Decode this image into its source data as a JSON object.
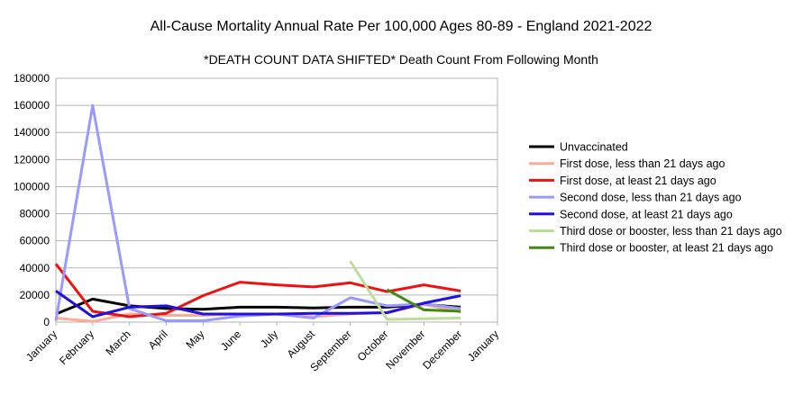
{
  "chart_data": {
    "type": "line",
    "title": "All-Cause Mortality Annual Rate Per 100,000 Ages 80-89 - England 2021-2022",
    "subtitle": "*DEATH COUNT DATA SHIFTED* Death Count From Following Month",
    "xlabel": "",
    "ylabel": "",
    "categories": [
      "January",
      "February",
      "March",
      "April",
      "May",
      "June",
      "July",
      "August",
      "September",
      "October",
      "November",
      "December",
      "January"
    ],
    "ylim": [
      0,
      180000
    ],
    "yticks": [
      "180000",
      "160000",
      "140000",
      "120000",
      "100000",
      "80000",
      "60000",
      "40000",
      "20000",
      "0"
    ],
    "grid": true,
    "legend_position": "right",
    "series": [
      {
        "name": "Unvaccinated",
        "color": "#000000",
        "values": [
          6000,
          17000,
          12000,
          10000,
          9500,
          11000,
          11000,
          10500,
          11000,
          11000,
          13000,
          11000,
          null
        ]
      },
      {
        "name": "First dose, less than 21 days ago",
        "color": "#ffaa95",
        "values": [
          3000,
          500,
          6000,
          5000,
          5000,
          6000,
          6000,
          4000,
          6000,
          7000,
          13000,
          7500,
          null
        ]
      },
      {
        "name": "First dose, at least 21 days ago",
        "color": "#ee1111",
        "values": [
          43000,
          8000,
          4000,
          6500,
          19500,
          29500,
          27500,
          26000,
          29000,
          22500,
          27500,
          23000,
          null
        ]
      },
      {
        "name": "Second dose, less than 21 days ago",
        "color": "#9999ff",
        "values": [
          1000,
          160000,
          10000,
          1000,
          1000,
          4500,
          6000,
          3000,
          18000,
          12000,
          13500,
          10000,
          null
        ]
      },
      {
        "name": "Second dose, at least 21 days ago",
        "color": "#2211dd",
        "values": [
          23000,
          4000,
          11000,
          12000,
          6000,
          6000,
          6000,
          6500,
          6500,
          7000,
          14000,
          19500,
          null
        ]
      },
      {
        "name": "Third dose or booster, less than 21 days ago",
        "color": "#bbdd99",
        "values": [
          null,
          null,
          null,
          null,
          null,
          null,
          null,
          null,
          45000,
          2000,
          2500,
          3000,
          null
        ]
      },
      {
        "name": "Third dose or booster, at least 21 days ago",
        "color": "#448811",
        "values": [
          null,
          null,
          null,
          null,
          null,
          null,
          null,
          null,
          null,
          24000,
          9000,
          8000,
          null
        ]
      }
    ]
  }
}
